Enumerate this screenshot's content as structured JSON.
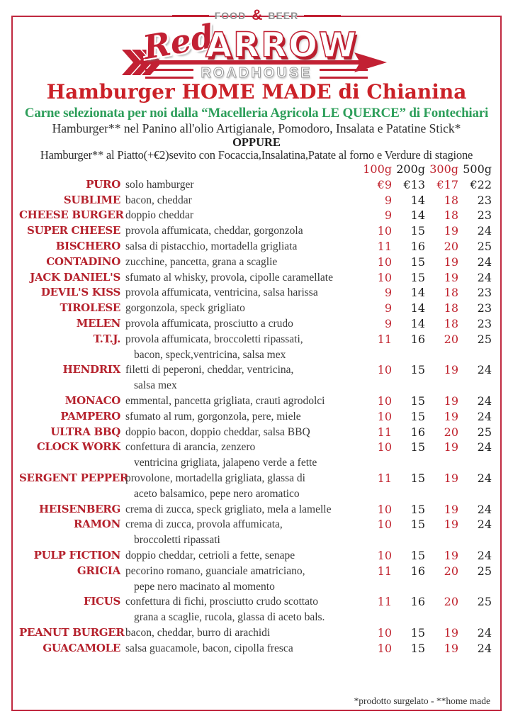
{
  "logo": {
    "tagline_left": "FOOD",
    "tagline_amp": "&",
    "tagline_right": "BEER",
    "brand_script": "Red",
    "brand_main": "ARROW",
    "brand_sub": "ROADHOUSE"
  },
  "header": {
    "title": "Hamburger HOME MADE di Chianina",
    "subtitle": "Carne selezionata per noi dalla “Macelleria Agricola LE QUERCE” di Fontechiari",
    "line1": "Hamburger** nel Panino all'olio Artigianale, Pomodoro, Insalata e Patatine Stick*",
    "or_label": "OPPURE",
    "line2": "Hamburger** al Piatto(+€2)sevito con Focaccia,Insalatina,Patate al forno e Verdure di stagione"
  },
  "menu": {
    "size_headers": [
      "100g",
      "200g",
      "300g",
      "500g"
    ],
    "items": [
      {
        "name": "PURO",
        "desc": "solo hamburger",
        "prices": [
          "€9",
          "€13",
          "€17",
          "€22"
        ]
      },
      {
        "name": "SUBLIME",
        "desc": "bacon, cheddar",
        "prices": [
          "9",
          "14",
          "18",
          "23"
        ]
      },
      {
        "name": "CHEESE BURGER",
        "desc": "doppio cheddar",
        "prices": [
          "9",
          "14",
          "18",
          "23"
        ]
      },
      {
        "name": "SUPER CHEESE",
        "desc": "provola affumicata, cheddar, gorgonzola",
        "prices": [
          "10",
          "15",
          "19",
          "24"
        ]
      },
      {
        "name": "BISCHERO",
        "desc": "salsa di pistacchio, mortadella grigliata",
        "prices": [
          "11",
          "16",
          "20",
          "25"
        ]
      },
      {
        "name": "CONTADINO",
        "desc": "zucchine, pancetta, grana a scaglie",
        "prices": [
          "10",
          "15",
          "19",
          "24"
        ]
      },
      {
        "name": "JACK DANIEL'S",
        "desc": "sfumato al whisky, provola, cipolle caramellate",
        "prices": [
          "10",
          "15",
          "19",
          "24"
        ]
      },
      {
        "name": "DEVIL'S KISS",
        "desc": "provola affumicata, ventricina, salsa harissa",
        "prices": [
          "9",
          "14",
          "18",
          "23"
        ]
      },
      {
        "name": "TIROLESE",
        "desc": "gorgonzola, speck grigliato",
        "prices": [
          "9",
          "14",
          "18",
          "23"
        ]
      },
      {
        "name": "MELEN",
        "desc": "provola affumicata, prosciutto a crudo",
        "prices": [
          "9",
          "14",
          "18",
          "23"
        ]
      },
      {
        "name": "T.T.J.",
        "desc": "provola affumicata, broccoletti ripassati,",
        "desc2": "bacon, speck,ventricina, salsa mex",
        "prices": [
          "11",
          "16",
          "20",
          "25"
        ]
      },
      {
        "name": "HENDRIX",
        "desc": "filetti di peperoni, cheddar, ventricina,",
        "desc2": "salsa mex",
        "prices": [
          "10",
          "15",
          "19",
          "24"
        ]
      },
      {
        "name": "MONACO",
        "desc": "emmental, pancetta grigliata, crauti agrodolci",
        "prices": [
          "10",
          "15",
          "19",
          "24"
        ]
      },
      {
        "name": "PAMPERO",
        "desc": "sfumato al rum, gorgonzola, pere, miele",
        "prices": [
          "10",
          "15",
          "19",
          "24"
        ]
      },
      {
        "name": "ULTRA BBQ",
        "desc": "doppio bacon, doppio cheddar, salsa BBQ",
        "prices": [
          "11",
          "16",
          "20",
          "25"
        ]
      },
      {
        "name": "CLOCK WORK",
        "desc": "confettura di arancia, zenzero",
        "desc2": "ventricina grigliata, jalapeno verde a fette",
        "prices": [
          "10",
          "15",
          "19",
          "24"
        ]
      },
      {
        "name": "SERGENT PEPPER",
        "desc": "provolone, mortadella grigliata, glassa di",
        "desc2": "aceto balsamico, pepe nero aromatico",
        "prices": [
          "11",
          "15",
          "19",
          "24"
        ]
      },
      {
        "name": "HEISENBERG",
        "desc": "crema di zucca, speck grigliato, mela a lamelle",
        "prices": [
          "10",
          "15",
          "19",
          "24"
        ]
      },
      {
        "name": "RAMON",
        "desc": "crema di zucca, provola affumicata,",
        "desc2": "broccoletti ripassati",
        "prices": [
          "10",
          "15",
          "19",
          "24"
        ]
      },
      {
        "name": "PULP FICTION",
        "desc": "doppio cheddar, cetrioli a fette, senape",
        "prices": [
          "10",
          "15",
          "19",
          "24"
        ]
      },
      {
        "name": "GRICIA",
        "desc": "pecorino romano, guanciale amatriciano,",
        "desc2": "pepe nero macinato al momento",
        "prices": [
          "11",
          "16",
          "20",
          "25"
        ]
      },
      {
        "name": "FICUS",
        "desc": "confettura di fichi, prosciutto crudo scottato",
        "desc2": "grana a scaglie, rucola, glassa di aceto bals.",
        "prices": [
          "11",
          "16",
          "20",
          "25"
        ]
      },
      {
        "name": "PEANUT BURGER",
        "desc": "bacon, cheddar, burro di arachidi",
        "prices": [
          "10",
          "15",
          "19",
          "24"
        ]
      },
      {
        "name": "GUACAMOLE",
        "desc": "salsa guacamole, bacon, cipolla fresca",
        "prices": [
          "10",
          "15",
          "19",
          "24"
        ]
      }
    ]
  },
  "footer": {
    "note": "*prodotto surgelato - **home made"
  },
  "colors": {
    "brand_red": "#c22033",
    "title_red": "#cb2128",
    "subtitle_green": "#2d9e5a",
    "name_red": "#b5212c",
    "price_red": "#c0232e",
    "text_dark": "#3a3a3a",
    "frame_red": "#c02940",
    "tagline_gray": "#8f8f8f"
  }
}
